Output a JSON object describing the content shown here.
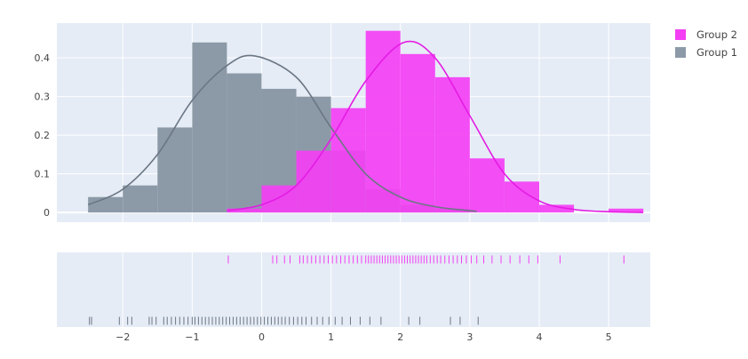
{
  "chart_data": {
    "type": "distplot",
    "title": "",
    "xlabel": "",
    "ylabel": "",
    "xlim": [
      -2.95,
      5.6
    ],
    "ylim": [
      -0.025,
      0.49
    ],
    "x_ticks": [
      -2,
      -1,
      0,
      1,
      2,
      3,
      4,
      5
    ],
    "x_tick_labels": [
      "−2",
      "−1",
      "0",
      "1",
      "2",
      "3",
      "4",
      "5"
    ],
    "y_ticks": [
      0,
      0.1,
      0.2,
      0.3,
      0.4
    ],
    "y_tick_labels": [
      "0",
      "0.1",
      "0.2",
      "0.3",
      "0.4"
    ],
    "grid": true,
    "legend_position": "top-right",
    "bin_size": 0.5,
    "series": [
      {
        "name": "Group 1",
        "color": "#8c9aa8",
        "curve_color": "#6b7684",
        "hist": {
          "bin_starts": [
            -2.5,
            -2.0,
            -1.5,
            -1.0,
            -0.5,
            0.0,
            0.5,
            1.0,
            1.5,
            2.0,
            2.5
          ],
          "heights": [
            0.04,
            0.07,
            0.22,
            0.44,
            0.36,
            0.32,
            0.3,
            0.16,
            0.06,
            0.02,
            0.01
          ]
        },
        "kde": {
          "x": [
            -2.5,
            -2.0,
            -1.5,
            -1.0,
            -0.5,
            -0.1,
            0.5,
            1.0,
            1.5,
            2.0,
            2.5,
            3.1
          ],
          "y": [
            0.02,
            0.06,
            0.15,
            0.29,
            0.38,
            0.405,
            0.35,
            0.22,
            0.1,
            0.04,
            0.015,
            0.003
          ]
        },
        "rug_x": [
          -2.48,
          -2.45,
          -2.05,
          -1.93,
          -1.87,
          -1.62,
          -1.58,
          -1.52,
          -1.41,
          -1.36,
          -1.3,
          -1.24,
          -1.18,
          -1.12,
          -1.06,
          -1.0,
          -0.96,
          -0.91,
          -0.86,
          -0.81,
          -0.76,
          -0.71,
          -0.66,
          -0.61,
          -0.56,
          -0.51,
          -0.46,
          -0.41,
          -0.36,
          -0.31,
          -0.26,
          -0.21,
          -0.16,
          -0.11,
          -0.06,
          -0.01,
          0.04,
          0.09,
          0.14,
          0.19,
          0.24,
          0.29,
          0.34,
          0.4,
          0.46,
          0.52,
          0.58,
          0.64,
          0.72,
          0.8,
          0.88,
          0.97,
          1.06,
          1.16,
          1.28,
          1.42,
          1.56,
          1.72,
          2.12,
          2.28,
          2.72,
          2.86,
          3.12
        ]
      },
      {
        "name": "Group 2",
        "color": "#f43ff4",
        "curve_color": "#e41be4",
        "hist": {
          "bin_starts": [
            -0.5,
            0.0,
            0.5,
            1.0,
            1.5,
            2.0,
            2.5,
            3.0,
            3.5,
            4.0,
            4.5,
            5.0
          ],
          "heights": [
            0.01,
            0.07,
            0.16,
            0.27,
            0.47,
            0.41,
            0.35,
            0.14,
            0.08,
            0.02,
            0.0,
            0.01
          ]
        },
        "kde": {
          "x": [
            -0.5,
            0.0,
            0.5,
            1.0,
            1.5,
            2.05,
            2.5,
            3.0,
            3.5,
            4.0,
            4.5,
            5.0,
            5.5
          ],
          "y": [
            0.005,
            0.02,
            0.07,
            0.19,
            0.34,
            0.44,
            0.4,
            0.25,
            0.1,
            0.03,
            0.008,
            0.002,
            0.0
          ]
        },
        "rug_x": [
          -0.48,
          0.16,
          0.22,
          0.33,
          0.41,
          0.55,
          0.6,
          0.66,
          0.72,
          0.78,
          0.84,
          0.9,
          0.96,
          1.02,
          1.08,
          1.14,
          1.2,
          1.26,
          1.32,
          1.38,
          1.44,
          1.5,
          1.54,
          1.58,
          1.62,
          1.66,
          1.7,
          1.74,
          1.78,
          1.82,
          1.86,
          1.9,
          1.94,
          1.98,
          2.02,
          2.06,
          2.1,
          2.14,
          2.18,
          2.22,
          2.26,
          2.3,
          2.34,
          2.38,
          2.43,
          2.48,
          2.53,
          2.58,
          2.64,
          2.7,
          2.76,
          2.82,
          2.88,
          2.95,
          3.02,
          3.1,
          3.2,
          3.32,
          3.45,
          3.58,
          3.72,
          3.85,
          3.98,
          4.3,
          5.22
        ]
      }
    ],
    "legend": [
      {
        "name": "Group 2",
        "color": "#f43ff4"
      },
      {
        "name": "Group 1",
        "color": "#8c9aa8"
      }
    ]
  }
}
